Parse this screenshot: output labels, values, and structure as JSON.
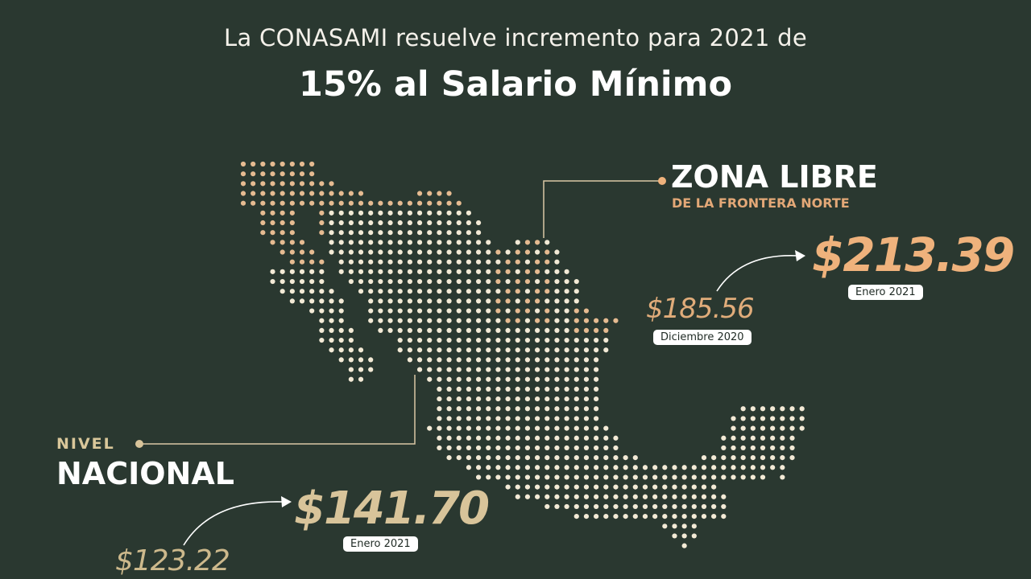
{
  "header": {
    "line1": "La CONASAMI resuelve incremento para 2021 de",
    "line2": "15% al Salario Mínimo"
  },
  "zona_libre": {
    "title": "ZONA LIBRE",
    "subtitle": "DE LA FRONTERA NORTE",
    "previous_value": "$185.56",
    "previous_date": "Diciembre 2020",
    "new_value": "$213.39",
    "new_date": "Enero 2021"
  },
  "nacional": {
    "label_top": "NIVEL",
    "label_main": "NACIONAL",
    "previous_value": "$123.22",
    "new_value": "$141.70",
    "new_date": "Enero 2021"
  },
  "colors": {
    "background": "#2a3830",
    "zona_accent": "#efb27c",
    "nacional_accent": "#d8c49a",
    "map_dot_north": "#e6bb91",
    "map_dot": "#f3ead6"
  }
}
